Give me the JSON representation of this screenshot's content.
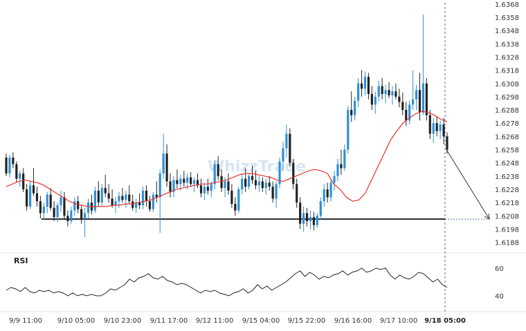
{
  "chart_data": [
    {
      "type": "candlestick",
      "panel": "price",
      "y_ticks": [
        "1.6188",
        "1.6198",
        "1.6208",
        "1.6218",
        "1.6228",
        "1.6238",
        "1.6248",
        "1.6258",
        "1.6268",
        "1.6278",
        "1.6288",
        "1.6298",
        "1.6308",
        "1.6318",
        "1.6328",
        "1.6338",
        "1.6348",
        "1.6358",
        "1.6368"
      ],
      "ylim": [
        1.6181,
        1.637
      ],
      "x_ticks": [
        "9/9 11:00",
        "9/10 05:00",
        "9/10 23:00",
        "9/11 17:00",
        "9/12 11:00",
        "9/15 04:00",
        "9/15 22:00",
        "9/16 16:00",
        "9/17 10:00",
        "9/18 05:00"
      ],
      "current_time_label": "9/18 05:00",
      "support_level": 1.62055,
      "projection": {
        "from": 1.6258,
        "to": 1.62055
      },
      "candles_ohlc": [
        [
          1.6252,
          1.6255,
          1.6238,
          1.624
        ],
        [
          1.624,
          1.6254,
          1.6237,
          1.6252
        ],
        [
          1.6252,
          1.6256,
          1.6244,
          1.6247
        ],
        [
          1.6247,
          1.6249,
          1.6233,
          1.6236
        ],
        [
          1.6236,
          1.6242,
          1.623,
          1.624
        ],
        [
          1.624,
          1.6244,
          1.6226,
          1.6228
        ],
        [
          1.6228,
          1.6232,
          1.6212,
          1.6215
        ],
        [
          1.6215,
          1.6234,
          1.6213,
          1.6231
        ],
        [
          1.6231,
          1.6244,
          1.6223,
          1.6225
        ],
        [
          1.6225,
          1.623,
          1.6215,
          1.6219
        ],
        [
          1.6219,
          1.6223,
          1.6206,
          1.621
        ],
        [
          1.621,
          1.6218,
          1.6205,
          1.6215
        ],
        [
          1.6215,
          1.6226,
          1.621,
          1.6224
        ],
        [
          1.6224,
          1.6229,
          1.6212,
          1.6214
        ],
        [
          1.6214,
          1.6219,
          1.6204,
          1.6207
        ],
        [
          1.6207,
          1.6218,
          1.6203,
          1.6216
        ],
        [
          1.6216,
          1.6227,
          1.6211,
          1.6222
        ],
        [
          1.6222,
          1.6226,
          1.6205,
          1.6208
        ],
        [
          1.6208,
          1.6212,
          1.62,
          1.6204
        ],
        [
          1.6204,
          1.6215,
          1.6202,
          1.6212
        ],
        [
          1.6212,
          1.6222,
          1.6208,
          1.6219
        ],
        [
          1.6219,
          1.6223,
          1.621,
          1.6213
        ],
        [
          1.6213,
          1.6216,
          1.6202,
          1.6206
        ],
        [
          1.6206,
          1.6214,
          1.6192,
          1.621
        ],
        [
          1.621,
          1.6221,
          1.6206,
          1.6218
        ],
        [
          1.6218,
          1.6224,
          1.6209,
          1.6212
        ],
        [
          1.6212,
          1.623,
          1.621,
          1.6227
        ],
        [
          1.6227,
          1.6234,
          1.6215,
          1.6218
        ],
        [
          1.6218,
          1.6232,
          1.6215,
          1.6229
        ],
        [
          1.6229,
          1.6239,
          1.6222,
          1.6225
        ],
        [
          1.6225,
          1.6232,
          1.6218,
          1.6221
        ],
        [
          1.6221,
          1.6228,
          1.6214,
          1.6216
        ],
        [
          1.6216,
          1.6222,
          1.621,
          1.6219
        ],
        [
          1.6219,
          1.6226,
          1.6214,
          1.6223
        ],
        [
          1.6223,
          1.6229,
          1.6218,
          1.622
        ],
        [
          1.622,
          1.6227,
          1.6214,
          1.6224
        ],
        [
          1.6224,
          1.6231,
          1.6217,
          1.6219
        ],
        [
          1.6219,
          1.6224,
          1.6212,
          1.6214
        ],
        [
          1.6214,
          1.6221,
          1.621,
          1.6218
        ],
        [
          1.6218,
          1.6225,
          1.6213,
          1.6216
        ],
        [
          1.6216,
          1.623,
          1.6213,
          1.6227
        ],
        [
          1.6227,
          1.6231,
          1.6215,
          1.6219
        ],
        [
          1.6219,
          1.6223,
          1.6211,
          1.6213
        ],
        [
          1.6213,
          1.6226,
          1.6211,
          1.6224
        ],
        [
          1.6224,
          1.6234,
          1.6218,
          1.6222
        ],
        [
          1.6222,
          1.6243,
          1.6195,
          1.624
        ],
        [
          1.624,
          1.627,
          1.6236,
          1.6255
        ],
        [
          1.6255,
          1.6262,
          1.623,
          1.6234
        ],
        [
          1.6234,
          1.624,
          1.6222,
          1.6226
        ],
        [
          1.6226,
          1.6238,
          1.6222,
          1.6235
        ],
        [
          1.6235,
          1.6243,
          1.6229,
          1.6232
        ],
        [
          1.6232,
          1.6239,
          1.6227,
          1.6236
        ],
        [
          1.6236,
          1.6242,
          1.623,
          1.6233
        ],
        [
          1.6233,
          1.624,
          1.6228,
          1.6237
        ],
        [
          1.6237,
          1.6241,
          1.623,
          1.6232
        ],
        [
          1.6232,
          1.6237,
          1.6226,
          1.6235
        ],
        [
          1.6235,
          1.624,
          1.6229,
          1.6231
        ],
        [
          1.6231,
          1.6236,
          1.6222,
          1.6225
        ],
        [
          1.6225,
          1.6233,
          1.622,
          1.623
        ],
        [
          1.623,
          1.6236,
          1.6224,
          1.6227
        ],
        [
          1.6227,
          1.6234,
          1.6222,
          1.6232
        ],
        [
          1.6232,
          1.625,
          1.6228,
          1.6247
        ],
        [
          1.6247,
          1.6253,
          1.6235,
          1.6238
        ],
        [
          1.6238,
          1.6243,
          1.6226,
          1.6229
        ],
        [
          1.6229,
          1.6237,
          1.6222,
          1.6234
        ],
        [
          1.6234,
          1.624,
          1.6224,
          1.6227
        ],
        [
          1.6227,
          1.6232,
          1.6214,
          1.6217
        ],
        [
          1.6217,
          1.6222,
          1.6208,
          1.6212
        ],
        [
          1.6212,
          1.623,
          1.621,
          1.6228
        ],
        [
          1.6228,
          1.624,
          1.6224,
          1.6236
        ],
        [
          1.6236,
          1.6244,
          1.6226,
          1.623
        ],
        [
          1.623,
          1.624,
          1.6228,
          1.6238
        ],
        [
          1.6238,
          1.6246,
          1.6232,
          1.6235
        ],
        [
          1.6235,
          1.6242,
          1.6228,
          1.6231
        ],
        [
          1.6231,
          1.6238,
          1.6226,
          1.6234
        ],
        [
          1.6234,
          1.6237,
          1.6226,
          1.6229
        ],
        [
          1.6229,
          1.6236,
          1.6224,
          1.6233
        ],
        [
          1.6233,
          1.6238,
          1.6227,
          1.623
        ],
        [
          1.623,
          1.6234,
          1.6218,
          1.6221
        ],
        [
          1.6221,
          1.6234,
          1.6214,
          1.6232
        ],
        [
          1.6232,
          1.6252,
          1.6229,
          1.6249
        ],
        [
          1.6249,
          1.6264,
          1.6242,
          1.6259
        ],
        [
          1.6259,
          1.6277,
          1.6252,
          1.627
        ],
        [
          1.627,
          1.6274,
          1.6245,
          1.6248
        ],
        [
          1.6248,
          1.6251,
          1.6228,
          1.6232
        ],
        [
          1.6232,
          1.6236,
          1.6214,
          1.6218
        ],
        [
          1.6218,
          1.6222,
          1.6198,
          1.6202
        ],
        [
          1.6202,
          1.6215,
          1.6196,
          1.621
        ],
        [
          1.621,
          1.6214,
          1.62,
          1.6204
        ],
        [
          1.6204,
          1.6212,
          1.6198,
          1.6207
        ],
        [
          1.6207,
          1.6211,
          1.6197,
          1.6201
        ],
        [
          1.6201,
          1.621,
          1.6199,
          1.6208
        ],
        [
          1.6208,
          1.6222,
          1.6205,
          1.6219
        ],
        [
          1.6219,
          1.6232,
          1.6215,
          1.6228
        ],
        [
          1.6228,
          1.6233,
          1.6218,
          1.6222
        ],
        [
          1.6222,
          1.6236,
          1.6219,
          1.6233
        ],
        [
          1.6233,
          1.6242,
          1.6227,
          1.6238
        ],
        [
          1.6238,
          1.6251,
          1.6234,
          1.6247
        ],
        [
          1.6247,
          1.6258,
          1.6239,
          1.6244
        ],
        [
          1.6244,
          1.6262,
          1.6242,
          1.6258
        ],
        [
          1.6258,
          1.6291,
          1.6255,
          1.6288
        ],
        [
          1.6288,
          1.6302,
          1.6279,
          1.6284
        ],
        [
          1.6284,
          1.6298,
          1.628,
          1.6295
        ],
        [
          1.6295,
          1.6312,
          1.629,
          1.6308
        ],
        [
          1.6308,
          1.6318,
          1.6298,
          1.6304
        ],
        [
          1.6304,
          1.6317,
          1.6299,
          1.6313
        ],
        [
          1.6313,
          1.6316,
          1.6296,
          1.63
        ],
        [
          1.63,
          1.6306,
          1.6288,
          1.6292
        ],
        [
          1.6292,
          1.6302,
          1.6285,
          1.6298
        ],
        [
          1.6298,
          1.631,
          1.6294,
          1.6306
        ],
        [
          1.6306,
          1.6312,
          1.6296,
          1.63
        ],
        [
          1.63,
          1.6307,
          1.6293,
          1.6303
        ],
        [
          1.6303,
          1.6309,
          1.6297,
          1.6299
        ],
        [
          1.6299,
          1.6306,
          1.6292,
          1.6302
        ],
        [
          1.6302,
          1.6308,
          1.6296,
          1.6298
        ],
        [
          1.6298,
          1.6304,
          1.629,
          1.6294
        ],
        [
          1.6294,
          1.6301,
          1.6284,
          1.6288
        ],
        [
          1.6288,
          1.6294,
          1.6276,
          1.628
        ],
        [
          1.628,
          1.6295,
          1.6277,
          1.6292
        ],
        [
          1.6292,
          1.6318,
          1.6288,
          1.6296
        ],
        [
          1.6296,
          1.6307,
          1.6288,
          1.6303
        ],
        [
          1.6303,
          1.6316,
          1.628,
          1.6286
        ],
        [
          1.6286,
          1.636,
          1.6284,
          1.6308
        ],
        [
          1.6308,
          1.6312,
          1.628,
          1.6284
        ],
        [
          1.6284,
          1.6288,
          1.6266,
          1.627
        ],
        [
          1.627,
          1.6282,
          1.6263,
          1.6278
        ],
        [
          1.6278,
          1.6283,
          1.6268,
          1.6272
        ],
        [
          1.6272,
          1.628,
          1.6266,
          1.6277
        ],
        [
          1.6277,
          1.6282,
          1.6262,
          1.6268
        ],
        [
          1.6268,
          1.6271,
          1.6255,
          1.6258
        ]
      ],
      "ma_line": [
        1.623,
        1.6232,
        1.6234,
        1.6235,
        1.6234,
        1.6233,
        1.6231,
        1.6228,
        1.6225,
        1.6222,
        1.6219,
        1.6217,
        1.6216,
        1.6215,
        1.6215,
        1.6215,
        1.6215,
        1.6216,
        1.6216,
        1.6217,
        1.6217,
        1.6218,
        1.6219,
        1.622,
        1.6222,
        1.6224,
        1.6226,
        1.6228,
        1.6229,
        1.623,
        1.6231,
        1.6232,
        1.6232,
        1.6233,
        1.6234,
        1.6235,
        1.6237,
        1.6239,
        1.624,
        1.624,
        1.6239,
        1.6238,
        1.6237,
        1.6235,
        1.6234,
        1.6236,
        1.6238,
        1.624,
        1.6242,
        1.6243,
        1.6242,
        1.624,
        1.6232,
        1.6228,
        1.6222,
        1.6219,
        1.622,
        1.6225,
        1.6235,
        1.6245,
        1.6255,
        1.6265,
        1.6272,
        1.6278,
        1.6282,
        1.6285,
        1.6287,
        1.6286,
        1.6284,
        1.6281,
        1.6279
      ]
    },
    {
      "type": "line",
      "panel": "indicator",
      "label": "RSI",
      "y_ticks": [
        40,
        60
      ],
      "ylim": [
        30,
        70
      ],
      "values": [
        44,
        46,
        45,
        43,
        46,
        43,
        42,
        44,
        43,
        44,
        42,
        43,
        42,
        40,
        42,
        40,
        41,
        40,
        41,
        40,
        40,
        42,
        45,
        44,
        46,
        48,
        52,
        50,
        53,
        54,
        56,
        53,
        52,
        54,
        51,
        50,
        48,
        49,
        48,
        46,
        44,
        42,
        44,
        43,
        44,
        42,
        41,
        40,
        42,
        43,
        45,
        42,
        44,
        48,
        45,
        47,
        44,
        46,
        48,
        50,
        53,
        56,
        58,
        54,
        57,
        55,
        52,
        54,
        53,
        55,
        56,
        58,
        55,
        57,
        58,
        60,
        57,
        58,
        60,
        59,
        60,
        55,
        52,
        55,
        53,
        52,
        54,
        57,
        56,
        53,
        50,
        52,
        48,
        46
      ]
    }
  ]
}
